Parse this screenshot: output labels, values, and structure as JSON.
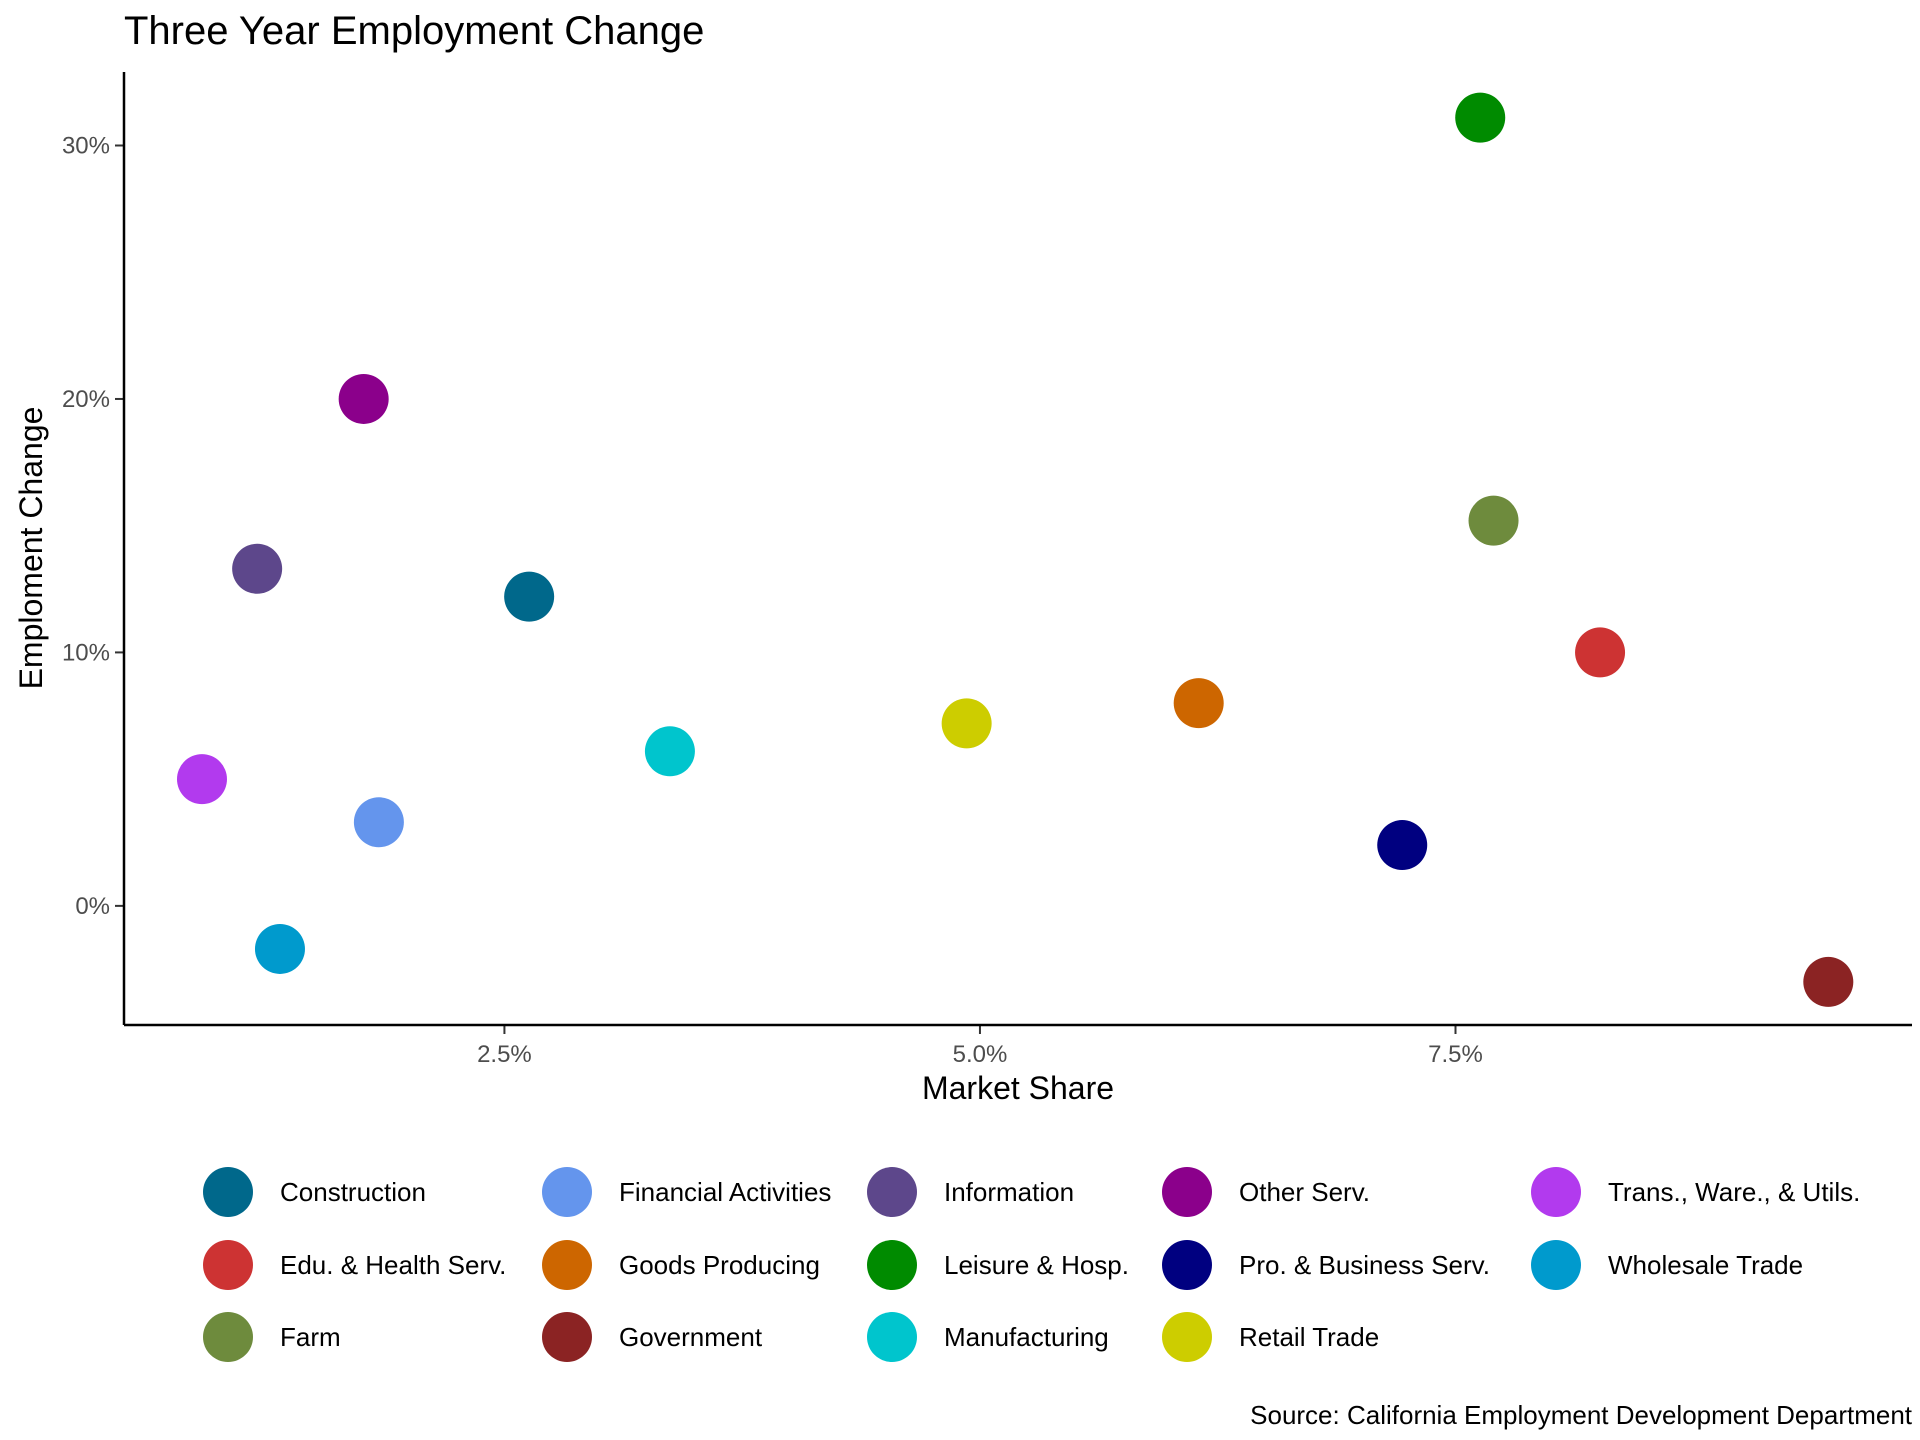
{
  "chart_data": {
    "type": "scatter",
    "title": "Three Year Employment Change",
    "xlabel": "Market Share",
    "ylabel": "Emploment Change",
    "caption": "Source: California Employment Development Department",
    "xlim": [
      0.5,
      9.9
    ],
    "ylim": [
      -4.7,
      32.9
    ],
    "x_unit": "%",
    "y_unit": "%",
    "xticks": [
      {
        "value": 2.5,
        "label": "2.5%"
      },
      {
        "value": 5.0,
        "label": "5.0%"
      },
      {
        "value": 7.5,
        "label": "7.5%"
      }
    ],
    "yticks": [
      {
        "value": 0,
        "label": "0%"
      },
      {
        "value": 10,
        "label": "10%"
      },
      {
        "value": 20,
        "label": "20%"
      },
      {
        "value": 30,
        "label": "30%"
      }
    ],
    "grid": false,
    "legend_position": "bottom",
    "series": [
      {
        "name": "Construction",
        "color": "#00688B",
        "x": 2.63,
        "y": 12.2
      },
      {
        "name": "Edu. & Health Serv.",
        "color": "#CD3333",
        "x": 8.26,
        "y": 10.0
      },
      {
        "name": "Farm",
        "color": "#6E8B3D",
        "x": 7.7,
        "y": 15.2
      },
      {
        "name": "Financial Activities",
        "color": "#6495ED",
        "x": 1.84,
        "y": 3.3
      },
      {
        "name": "Goods Producing",
        "color": "#CD6600",
        "x": 6.15,
        "y": 8.0
      },
      {
        "name": "Government",
        "color": "#8B2323",
        "x": 9.46,
        "y": -3.0
      },
      {
        "name": "Information",
        "color": "#5D478B",
        "x": 1.2,
        "y": 13.3
      },
      {
        "name": "Leisure & Hosp.",
        "color": "#008B00",
        "x": 7.63,
        "y": 31.1
      },
      {
        "name": "Manufacturing",
        "color": "#00C5CD",
        "x": 3.37,
        "y": 6.1
      },
      {
        "name": "Other Serv.",
        "color": "#8B008B",
        "x": 1.76,
        "y": 20.0
      },
      {
        "name": "Pro. & Business Serv.",
        "color": "#000080",
        "x": 7.22,
        "y": 2.4
      },
      {
        "name": "Retail Trade",
        "color": "#CDCD00",
        "x": 4.93,
        "y": 7.2
      },
      {
        "name": "Trans., Ware., & Utils.",
        "color": "#B23AEE",
        "x": 0.91,
        "y": 5.0
      },
      {
        "name": "Wholesale Trade",
        "color": "#009ACD",
        "x": 1.32,
        "y": -1.7
      }
    ]
  }
}
